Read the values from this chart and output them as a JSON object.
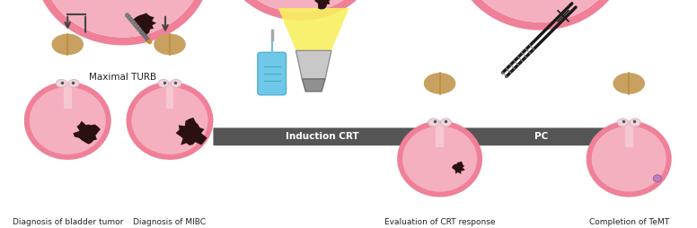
{
  "bg_color": "#ffffff",
  "pink_bladder": "#f5b0c0",
  "pink_wall": "#ef8098",
  "urethra_color": "#f5c8d0",
  "brown_prostate": "#c8a060",
  "tumor_color": "#2a1010",
  "text_color": "#222222",
  "titles": [
    "Diagnosis of bladder tumor",
    "Diagnosis of MIBC",
    "Evaluation of CRT response",
    "Completion of TeMT"
  ],
  "arrow_label1": "Induction CRT",
  "arrow_label2": "PC",
  "turb_label": "Maximal TURB",
  "blue_iv": "#70c8e8",
  "yellow_beam": "#f8f060",
  "arrow_gray": "#555555"
}
